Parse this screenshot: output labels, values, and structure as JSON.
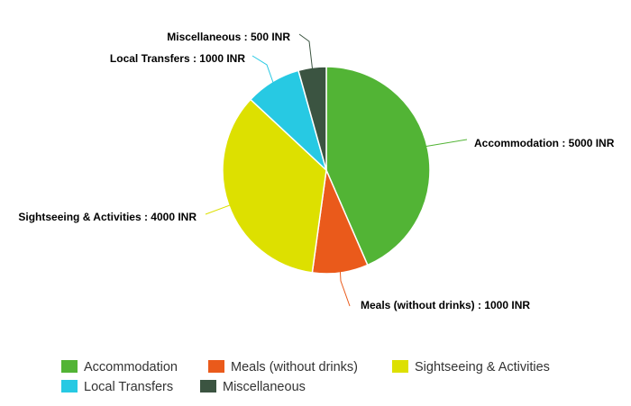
{
  "chart_data": {
    "type": "pie",
    "title": "",
    "series": [
      {
        "name": "Accommodation",
        "value": 5000,
        "label": "Accommodation : 5000 INR",
        "color": "#52b435"
      },
      {
        "name": "Meals (without drinks)",
        "value": 1000,
        "label": "Meals (without drinks) : 1000 INR",
        "color": "#ea5a1b"
      },
      {
        "name": "Sightseeing & Activities",
        "value": 4000,
        "label": "Sightseeing & Activities : 4000 INR",
        "color": "#dde000"
      },
      {
        "name": "Local Transfers",
        "value": 1000,
        "label": "Local Transfers : 1000 INR",
        "color": "#27c9e3"
      },
      {
        "name": "Miscellaneous",
        "value": 500,
        "label": "Miscellaneous : 500 INR",
        "color": "#3b5441"
      }
    ],
    "legend_position": "bottom"
  }
}
